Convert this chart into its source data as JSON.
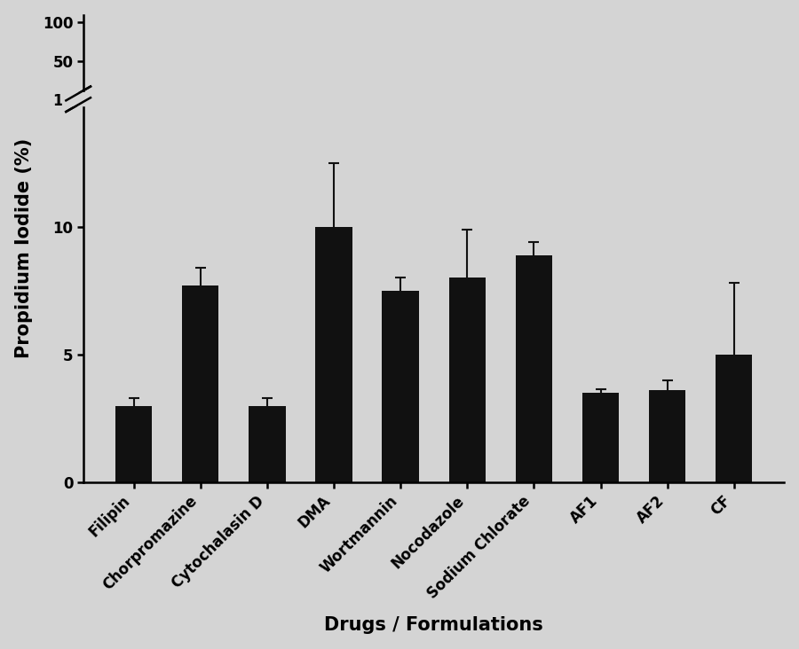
{
  "categories": [
    "Filipin",
    "Chorpromazine",
    "Cytochalasin D",
    "DMA",
    "Wortmannin",
    "Nocodazole",
    "Sodium Chlorate",
    "AF1",
    "AF2",
    "CF"
  ],
  "values": [
    3.0,
    7.7,
    3.0,
    10.0,
    7.5,
    8.0,
    8.9,
    3.5,
    3.6,
    5.0
  ],
  "errors": [
    0.3,
    0.7,
    0.3,
    2.5,
    0.5,
    1.9,
    0.5,
    0.15,
    0.4,
    2.8
  ],
  "bar_color": "#111111",
  "background_color": "#d4d4d4",
  "ylabel": "Propidium Iodide (%)",
  "xlabel": "Drugs / Formulations",
  "yticks_actual": [
    0,
    5,
    10,
    15,
    50,
    100
  ],
  "bar_width": 0.55,
  "axis_fontsize": 15,
  "tick_fontsize": 12
}
